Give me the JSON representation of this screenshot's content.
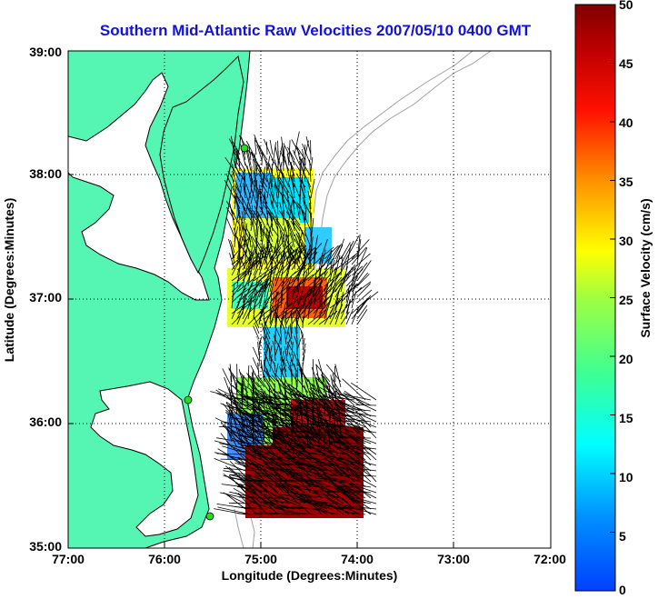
{
  "title": "Southern Mid-Atlantic Raw Velocities 2007/05/10 0400 GMT",
  "xlabel": "Longitude (Degrees:Minutes)",
  "ylabel": "Latitude (Degrees:Minutes)",
  "colorbar": {
    "label": "Surface Velocity (cm/s)",
    "ticks": [
      "0",
      "5",
      "10",
      "15",
      "20",
      "25",
      "30",
      "35",
      "40",
      "45",
      "50"
    ],
    "min": 0,
    "max": 50,
    "colormap": "jet"
  },
  "map": {
    "lon_ticks": [
      "77:00",
      "76:00",
      "75:00",
      "74:00",
      "73:00",
      "72:00"
    ],
    "lat_ticks": [
      "39:00",
      "38:00",
      "37:00",
      "36:00",
      "35:00"
    ],
    "lon_range": [
      -77,
      -72
    ],
    "lat_range": [
      35,
      39
    ],
    "land_color": "#55f5b3",
    "coastline_color": "#000000",
    "bathymetry_color": "#a0a0a0",
    "grid": "dotted",
    "station_marker_color": "#22dd22"
  }
}
